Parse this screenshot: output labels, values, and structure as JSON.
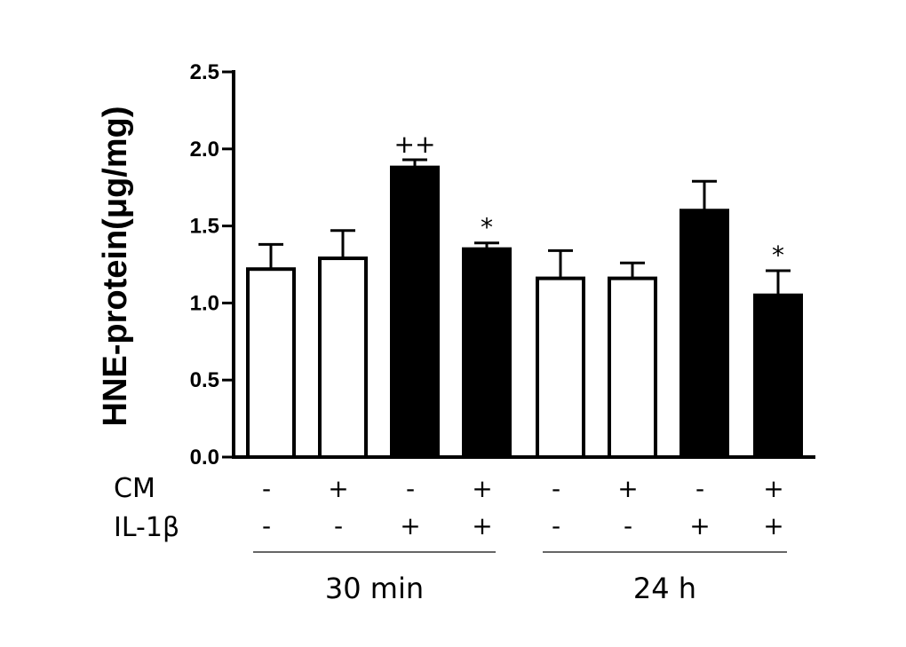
{
  "chart_data": {
    "type": "bar",
    "title": "",
    "xlabel": "",
    "ylabel": "HNE-protein(μg/mg)",
    "ylim": [
      0,
      2.5
    ],
    "yticks": [
      "0.0",
      "0.5",
      "1.0",
      "1.5",
      "2.0",
      "2.5"
    ],
    "grid": false,
    "bars": [
      {
        "value": 1.22,
        "error": 0.16,
        "fill": "white",
        "cm": "-",
        "il1b": "-",
        "annotation": ""
      },
      {
        "value": 1.29,
        "error": 0.18,
        "fill": "white",
        "cm": "+",
        "il1b": "-",
        "annotation": ""
      },
      {
        "value": 1.88,
        "error": 0.05,
        "fill": "black",
        "cm": "-",
        "il1b": "+",
        "annotation": "++"
      },
      {
        "value": 1.35,
        "error": 0.04,
        "fill": "black",
        "cm": "+",
        "il1b": "+",
        "annotation": "*"
      },
      {
        "value": 1.16,
        "error": 0.18,
        "fill": "white",
        "cm": "-",
        "il1b": "-",
        "annotation": ""
      },
      {
        "value": 1.16,
        "error": 0.1,
        "fill": "white",
        "cm": "+",
        "il1b": "-",
        "annotation": ""
      },
      {
        "value": 1.6,
        "error": 0.19,
        "fill": "black",
        "cm": "-",
        "il1b": "+",
        "annotation": ""
      },
      {
        "value": 1.05,
        "error": 0.16,
        "fill": "black",
        "cm": "+",
        "il1b": "+",
        "annotation": "*"
      }
    ],
    "row_labels": {
      "cm": "CM",
      "il1b": "IL-1β"
    },
    "groups": [
      {
        "label": "30 min",
        "bar_indices": [
          0,
          1,
          2,
          3
        ]
      },
      {
        "label": "24 h",
        "bar_indices": [
          4,
          5,
          6,
          7
        ]
      }
    ]
  }
}
